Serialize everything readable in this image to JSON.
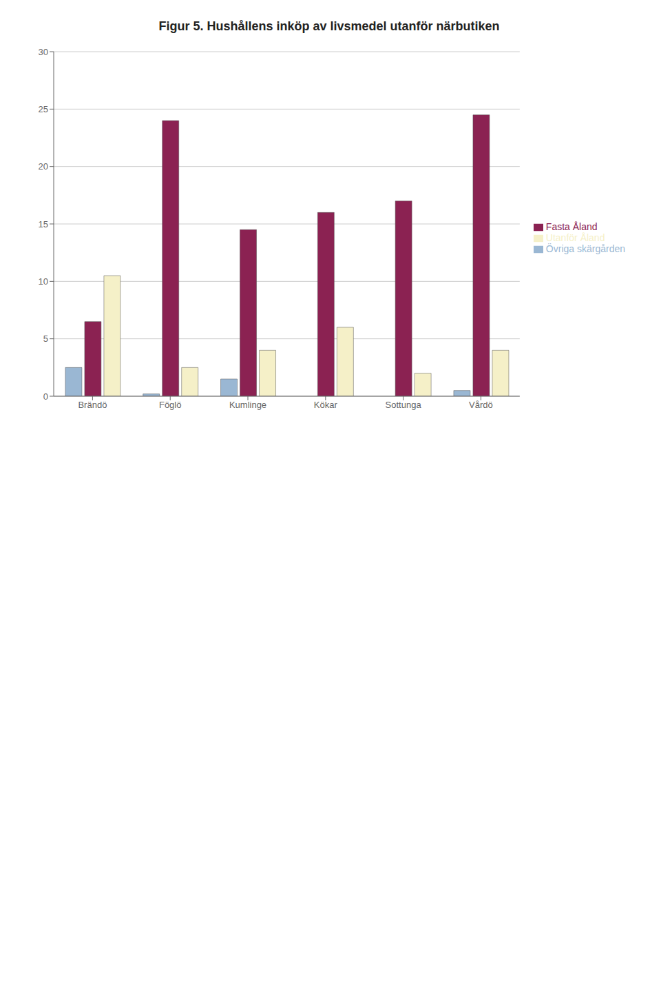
{
  "chart_data": {
    "type": "bar",
    "title": "Figur 5. Hushållens inköp av livsmedel utanför närbutiken",
    "categories": [
      "Brändö",
      "Föglö",
      "Kumlinge",
      "Kökar",
      "Sottunga",
      "Vårdö"
    ],
    "series": [
      {
        "name": "Övriga skärgården",
        "color": "#9ab7d3",
        "values": [
          2.5,
          0.2,
          1.5,
          0,
          0,
          0.5
        ]
      },
      {
        "name": "Fasta Åland",
        "color": "#8B2252",
        "values": [
          6.5,
          24.0,
          14.5,
          16.0,
          17.0,
          24.5
        ]
      },
      {
        "name": "Utanför Åland",
        "color": "#f5f0c8",
        "values": [
          10.5,
          2.5,
          4.0,
          6.0,
          2.0,
          4.0
        ]
      }
    ],
    "ylim": [
      0,
      30
    ],
    "yticks": [
      0,
      5,
      10,
      15,
      20,
      25,
      30
    ],
    "grid": true,
    "legend": "right"
  }
}
